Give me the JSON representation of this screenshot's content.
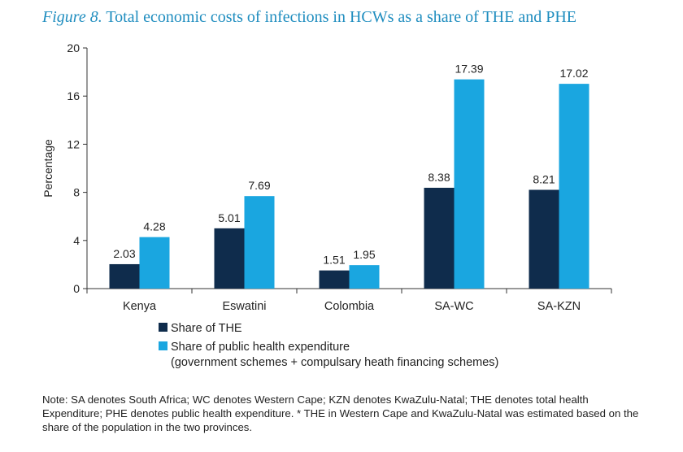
{
  "title": {
    "figure_label": "Figure 8.",
    "text": "Total economic costs of infections in HCWs as a share of THE and PHE"
  },
  "chart_data": {
    "type": "bar",
    "categories": [
      "Kenya",
      "Eswatini",
      "Colombia",
      "SA-WC",
      "SA-KZN"
    ],
    "series": [
      {
        "name": "Share of THE",
        "values": [
          2.03,
          5.01,
          1.51,
          8.38,
          8.21
        ],
        "labels": [
          "2.03",
          "5.01",
          "1.51",
          "8.38",
          "8.21"
        ],
        "color": "#0f2c4c"
      },
      {
        "name": "Share of public health expenditure",
        "name_line2": "(government schemes + compulsary heath financing schemes)",
        "values": [
          4.28,
          7.69,
          1.95,
          17.39,
          17.02
        ],
        "labels": [
          "4.28",
          "7.69",
          "1.95",
          "17.39",
          "17.02"
        ],
        "color": "#1aa6e0"
      }
    ],
    "ylabel": "Percentage",
    "xlabel": "",
    "ylim": [
      0,
      20
    ],
    "yticks": [
      0,
      4,
      8,
      12,
      16,
      20
    ],
    "grid": false,
    "legend": "bottom-left"
  },
  "note": "Note: SA denotes South Africa; WC denotes Western Cape; KZN denotes KwaZulu-Natal; THE denotes total health Expenditure; PHE denotes public health expenditure. * THE in Western Cape and KwaZulu-Natal was estimated based on the share of the population in the two provinces."
}
